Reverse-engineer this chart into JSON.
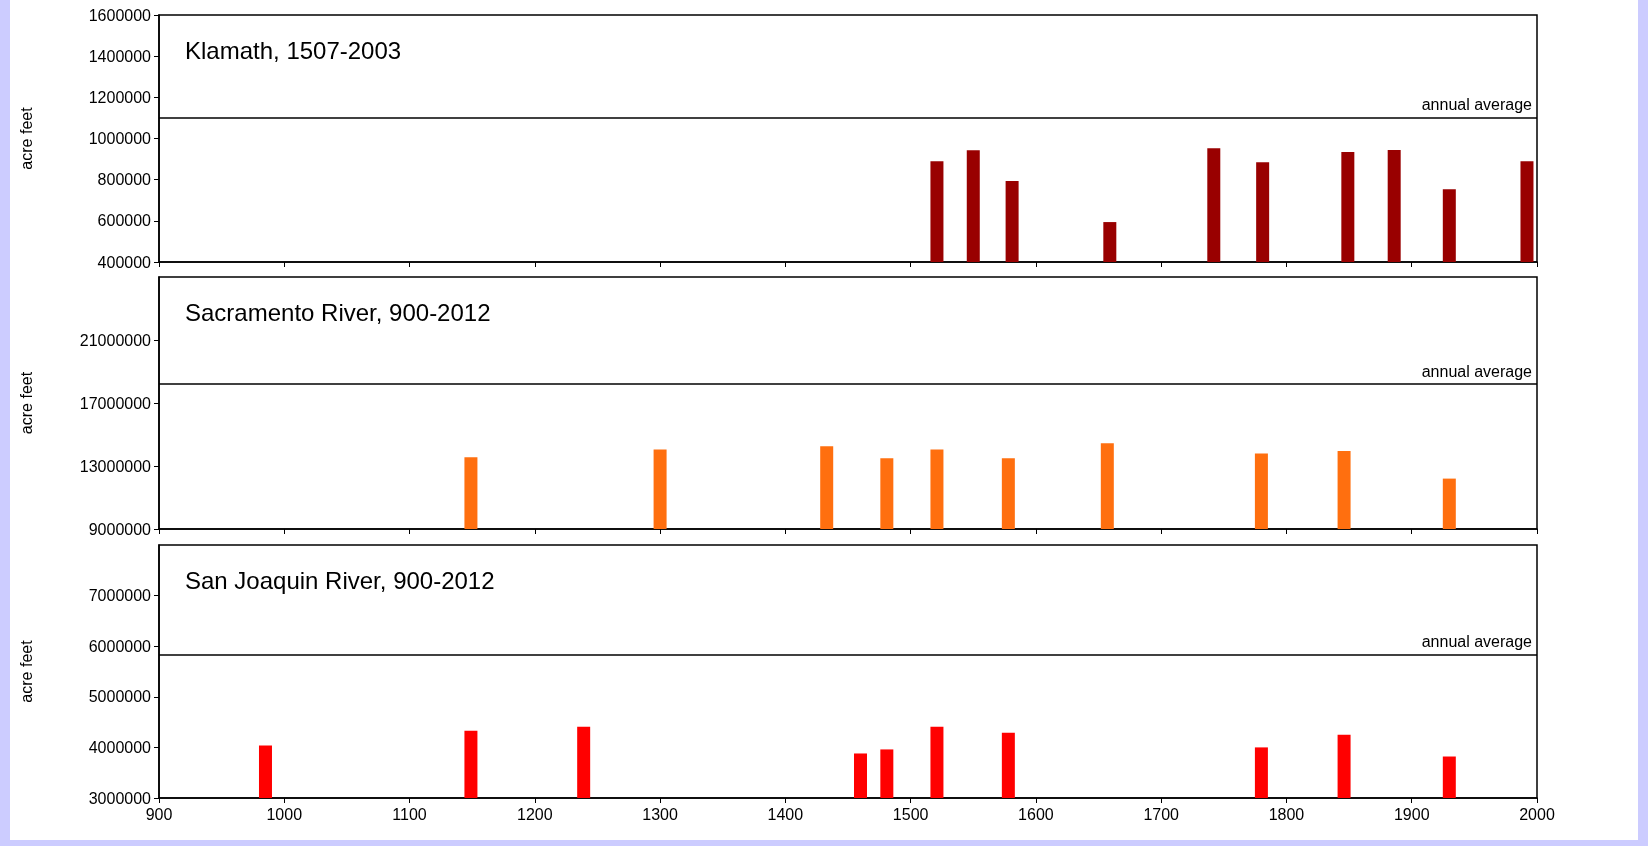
{
  "chart_data": [
    {
      "type": "bar",
      "title": "Klamath, 1507-2003",
      "ylabel": "acre feet",
      "tick_labels": "y",
      "x": [
        1521,
        1550,
        1581,
        1659,
        1742,
        1781,
        1849,
        1886,
        1930,
        1992
      ],
      "values": [
        890000,
        943000,
        793000,
        594000,
        953000,
        885000,
        934000,
        944000,
        754000,
        890000
      ],
      "color": "#990000",
      "xlim": [
        900,
        2000
      ],
      "xticks": [
        900,
        1000,
        1100,
        1200,
        1300,
        1400,
        1500,
        1600,
        1700,
        1800,
        1900,
        2000
      ],
      "ylim": [
        400000,
        1600000
      ],
      "yticks": [
        400000,
        600000,
        800000,
        1000000,
        1200000,
        1400000,
        1600000
      ],
      "ref_lines": [
        {
          "axis": "y",
          "value": 1100000,
          "label": "annual average",
          "color": "#000000"
        }
      ]
    },
    {
      "type": "bar",
      "title": "Sacramento River, 900-2012",
      "ylabel": "acre feet",
      "tick_labels": "y",
      "x": [
        1149,
        1300,
        1433,
        1481,
        1521,
        1578,
        1657,
        1780,
        1846,
        1930
      ],
      "values": [
        13550000,
        14050000,
        14250000,
        13500000,
        14050000,
        13500000,
        14450000,
        13800000,
        13950000,
        12200000
      ],
      "color": "#ff6f0f",
      "xlim": [
        900,
        2000
      ],
      "xticks": [
        900,
        1000,
        1100,
        1200,
        1300,
        1400,
        1500,
        1600,
        1700,
        1800,
        1900,
        2000
      ],
      "ylim": [
        9000000,
        25000000
      ],
      "yticks": [
        9000000,
        13000000,
        17000000,
        21000000
      ],
      "ref_lines": [
        {
          "axis": "y",
          "value": 18200000,
          "label": "annual average",
          "color": "#000000"
        }
      ]
    },
    {
      "type": "bar",
      "title": "San Joaquin River, 900-2012",
      "ylabel": "acre feet",
      "x": [
        985,
        1149,
        1239,
        1460,
        1481,
        1521,
        1578,
        1780,
        1846,
        1930
      ],
      "values": [
        4040000,
        4330000,
        4410000,
        3880000,
        3960000,
        4410000,
        4290000,
        4000000,
        4250000,
        3820000
      ],
      "color": "#ff0000",
      "xlim": [
        900,
        2000
      ],
      "xticks": [
        900,
        1000,
        1100,
        1200,
        1300,
        1400,
        1500,
        1600,
        1700,
        1800,
        1900,
        2000
      ],
      "ylim": [
        3000000,
        8000000
      ],
      "yticks": [
        3000000,
        4000000,
        5000000,
        6000000,
        7000000
      ],
      "ref_lines": [
        {
          "axis": "y",
          "value": 5840000,
          "label": "annual average",
          "color": "#000000"
        }
      ]
    }
  ]
}
